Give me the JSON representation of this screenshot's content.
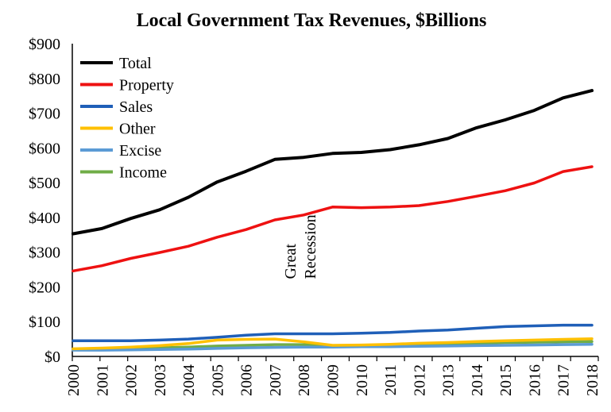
{
  "chart_data": {
    "type": "line",
    "title": "Local Government Tax Revenues, $Billions",
    "xlabel": "",
    "ylabel": "",
    "x": [
      "2000",
      "2001",
      "2002",
      "2003",
      "2004",
      "2005",
      "2006",
      "2007",
      "2008",
      "2009",
      "2010",
      "2011",
      "2012",
      "2013",
      "2014",
      "2015",
      "2016",
      "2017",
      "2018"
    ],
    "ylim": [
      0,
      900
    ],
    "yticks": [
      0,
      100,
      200,
      300,
      400,
      500,
      600,
      700,
      800,
      900
    ],
    "ytick_labels": [
      "$0",
      "$100",
      "$200",
      "$300",
      "$400",
      "$500",
      "$600",
      "$700",
      "$800",
      "$900"
    ],
    "grid": false,
    "legend_position": "top-left",
    "series": [
      {
        "name": "Total",
        "color": "#000000",
        "values": [
          353,
          368,
          397,
          422,
          458,
          502,
          533,
          567,
          573,
          584,
          587,
          595,
          609,
          627,
          658,
          681,
          708,
          744,
          765
        ]
      },
      {
        "name": "Property",
        "color": "#ee1111",
        "values": [
          246,
          261,
          282,
          299,
          317,
          343,
          365,
          393,
          407,
          430,
          428,
          430,
          434,
          446,
          461,
          477,
          499,
          532,
          546
        ]
      },
      {
        "name": "Sales",
        "color": "#1f5fb8",
        "values": [
          45,
          45,
          45,
          47,
          50,
          55,
          61,
          65,
          65,
          65,
          67,
          69,
          73,
          76,
          81,
          86,
          88,
          90,
          90
        ]
      },
      {
        "name": "Other",
        "color": "#ffc000",
        "values": [
          22,
          24,
          27,
          31,
          37,
          47,
          49,
          50,
          42,
          32,
          33,
          35,
          38,
          40,
          43,
          45,
          47,
          49,
          51
        ]
      },
      {
        "name": "Excise",
        "color": "#5b9bd5",
        "values": [
          18,
          18,
          19,
          20,
          21,
          23,
          25,
          26,
          27,
          27,
          28,
          28,
          29,
          30,
          31,
          32,
          33,
          34,
          35
        ]
      },
      {
        "name": "Income",
        "color": "#70ad47",
        "values": [
          21,
          22,
          24,
          25,
          27,
          30,
          32,
          34,
          34,
          30,
          31,
          33,
          35,
          37,
          38,
          40,
          41,
          42,
          43
        ]
      }
    ],
    "annotations": [
      {
        "text_lines": [
          "Great",
          "Recession"
        ],
        "x": "2008",
        "y": 200
      }
    ]
  }
}
